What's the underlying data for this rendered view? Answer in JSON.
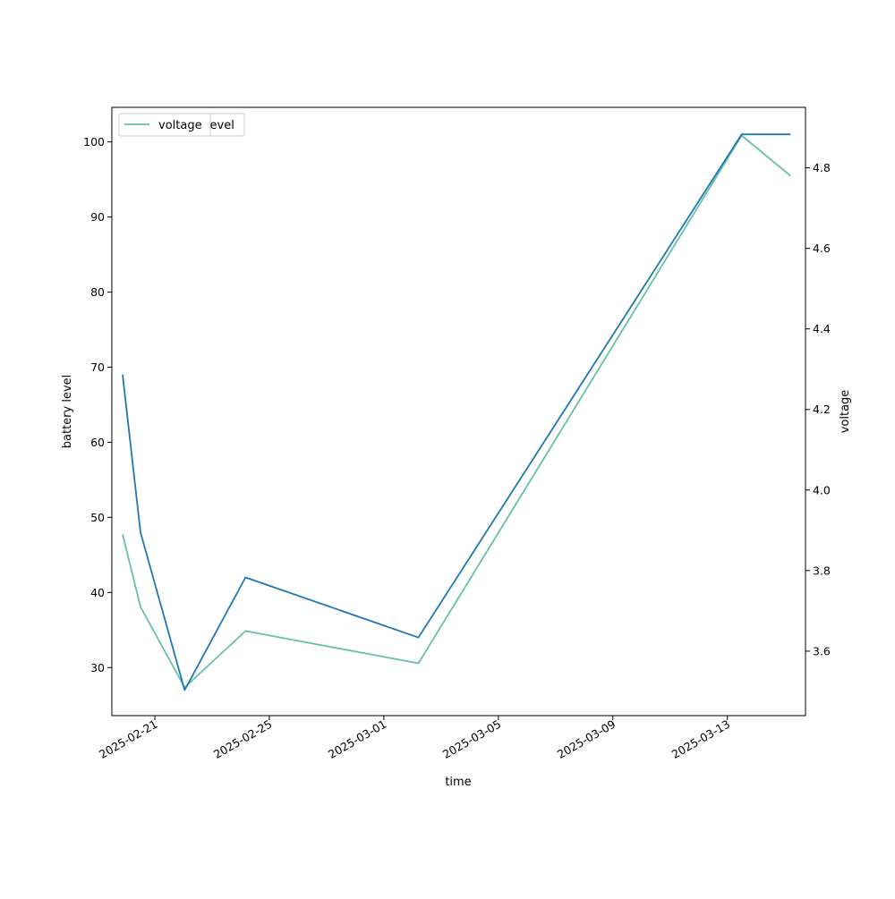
{
  "chart_data": {
    "type": "line",
    "title": "",
    "xlabel": "time",
    "ylabel_left": "battery level",
    "ylabel_right": "voltage",
    "x_ticks": [
      "2025-02-21",
      "2025-02-25",
      "2025-03-01",
      "2025-03-05",
      "2025-03-09",
      "2025-03-13"
    ],
    "xlim": [
      "2025-02-19T12:00",
      "2025-03-15T17:30"
    ],
    "ylim_left": [
      23.6,
      104.6
    ],
    "yticks_left": [
      30,
      40,
      50,
      60,
      70,
      80,
      90,
      100
    ],
    "ylim_right": [
      3.44,
      4.95
    ],
    "yticks_right": [
      3.6,
      3.8,
      4.0,
      4.2,
      4.4,
      4.6,
      4.8
    ],
    "grid": false,
    "legend_placement": "top-left",
    "legend_entries": [
      {
        "label": "voltage",
        "color": "#66c2a5"
      },
      {
        "label": "battery_level",
        "color": "#1f77b4"
      }
    ],
    "series": [
      {
        "name": "battery_level",
        "axis": "left",
        "color": "#1f77b4",
        "points": [
          {
            "x": "2025-02-19T21:00",
            "y": 69
          },
          {
            "x": "2025-02-20T12:00",
            "y": 48
          },
          {
            "x": "2025-02-22T01:00",
            "y": 27
          },
          {
            "x": "2025-02-24T04:00",
            "y": 42
          },
          {
            "x": "2025-03-02T05:00",
            "y": 34
          },
          {
            "x": "2025-03-13T12:00",
            "y": 101
          },
          {
            "x": "2025-03-15T05:00",
            "y": 101
          }
        ]
      },
      {
        "name": "voltage",
        "axis": "right",
        "color": "#66c2a5",
        "points": [
          {
            "x": "2025-02-19T21:00",
            "y": 3.89
          },
          {
            "x": "2025-02-20T12:00",
            "y": 3.71
          },
          {
            "x": "2025-02-22T01:00",
            "y": 3.51
          },
          {
            "x": "2025-02-24T04:00",
            "y": 3.65
          },
          {
            "x": "2025-03-02T05:00",
            "y": 3.57
          },
          {
            "x": "2025-03-13T12:00",
            "y": 4.88
          },
          {
            "x": "2025-03-15T05:00",
            "y": 4.78
          }
        ]
      }
    ]
  }
}
